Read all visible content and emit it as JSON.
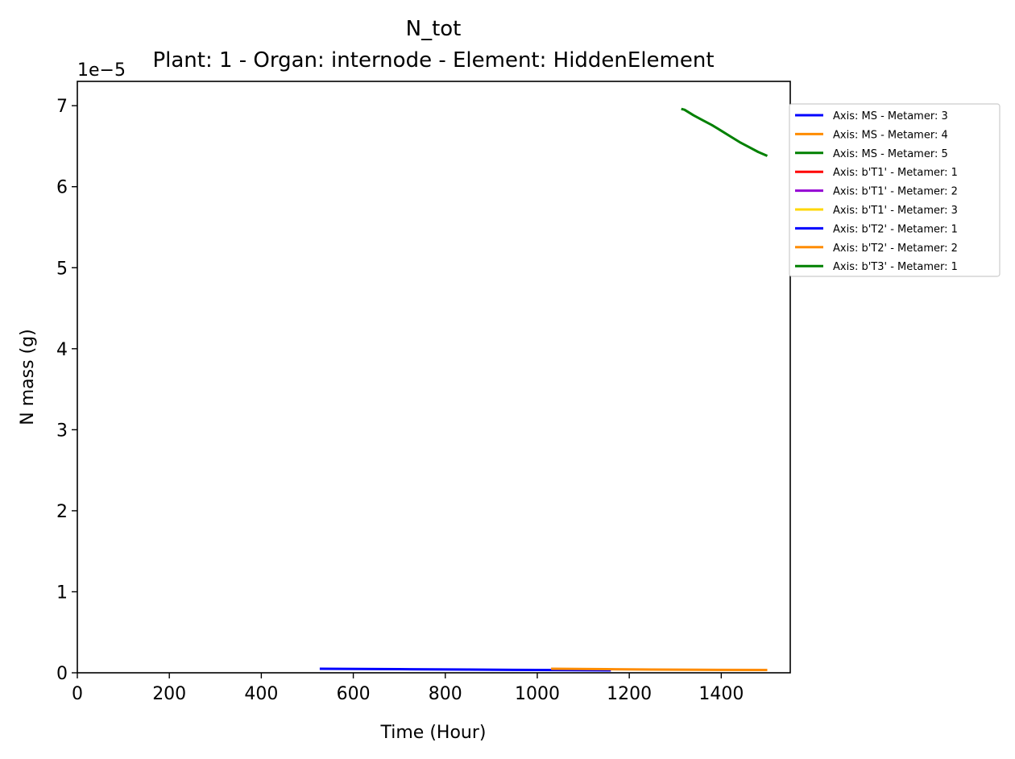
{
  "chart_data": {
    "type": "line",
    "title": "N_tot",
    "subtitle": "Plant: 1 - Organ: internode - Element: HiddenElement",
    "xlabel": "Time (Hour)",
    "ylabel": "N mass (g)",
    "y_scale_label": "1e−5",
    "xlim": [
      0,
      1550
    ],
    "ylim": [
      0,
      7.3
    ],
    "x_ticks": [
      0,
      200,
      400,
      600,
      800,
      1000,
      1200,
      1400
    ],
    "y_ticks": [
      0,
      1,
      2,
      3,
      4,
      5,
      6,
      7
    ],
    "grid": false,
    "legend_position": "outside right, top",
    "series": [
      {
        "name": "Axis: MS - Metamer: 3",
        "color": "#0000ff",
        "x": [
          527,
          700,
          850,
          1000,
          1160
        ],
        "y": [
          0.05,
          0.045,
          0.04,
          0.035,
          0.03
        ]
      },
      {
        "name": "Axis: MS - Metamer: 4",
        "color": "#ff8c00",
        "x": [
          1030,
          1150,
          1250,
          1350,
          1500
        ],
        "y": [
          0.05,
          0.045,
          0.04,
          0.037,
          0.035
        ]
      },
      {
        "name": "Axis: MS - Metamer: 5",
        "color": "#008000",
        "x": [
          1313,
          1320,
          1340,
          1360,
          1380,
          1400,
          1420,
          1440,
          1460,
          1480,
          1500
        ],
        "y": [
          6.96,
          6.95,
          6.88,
          6.82,
          6.76,
          6.69,
          6.62,
          6.55,
          6.49,
          6.43,
          6.38
        ]
      },
      {
        "name": "Axis: b'T1' - Metamer: 1",
        "color": "#ff0000",
        "x": [],
        "y": []
      },
      {
        "name": "Axis: b'T1' - Metamer: 2",
        "color": "#9400d3",
        "x": [],
        "y": []
      },
      {
        "name": "Axis: b'T1' - Metamer: 3",
        "color": "#ffd700",
        "x": [],
        "y": []
      },
      {
        "name": "Axis: b'T2' - Metamer: 1",
        "color": "#0000ff",
        "x": [],
        "y": []
      },
      {
        "name": "Axis: b'T2' - Metamer: 2",
        "color": "#ff8c00",
        "x": [],
        "y": []
      },
      {
        "name": "Axis: b'T3' - Metamer: 1",
        "color": "#008000",
        "x": [],
        "y": []
      }
    ]
  }
}
